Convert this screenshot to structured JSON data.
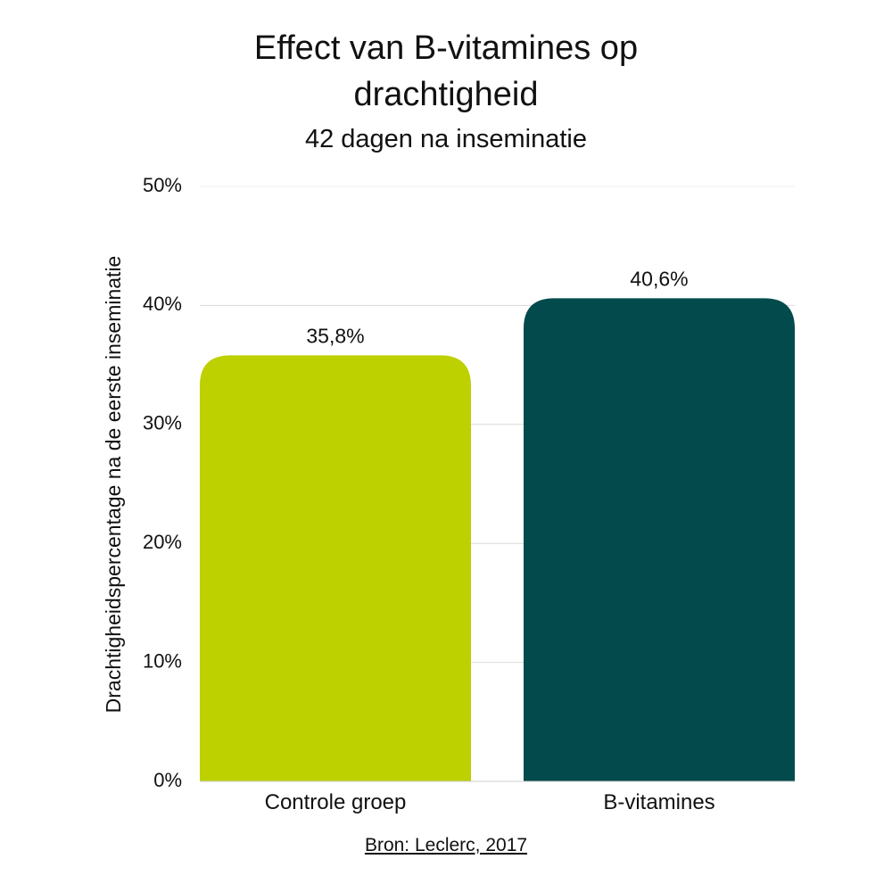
{
  "chart_data": {
    "type": "bar",
    "title_lines": [
      "Effect van B-vitamines op",
      "drachtigheid"
    ],
    "subtitle": "42 dagen na inseminatie",
    "categories": [
      "Controle groep",
      "B-vitamines"
    ],
    "values": [
      35.8,
      40.6
    ],
    "data_labels": [
      "35,8%",
      "40,6%"
    ],
    "colors": [
      "#BDD000",
      "#034A4C"
    ],
    "xlabel": "",
    "ylabel": "Drachtigheidspercentage na de eerste inseminatie",
    "ylim": [
      0,
      50
    ],
    "yticks": [
      0,
      10,
      20,
      30,
      40,
      50
    ],
    "ytick_labels": [
      "0%",
      "10%",
      "20%",
      "30%",
      "40%",
      "50%"
    ],
    "grid": true
  },
  "source": "Bron: Leclerc, 2017"
}
